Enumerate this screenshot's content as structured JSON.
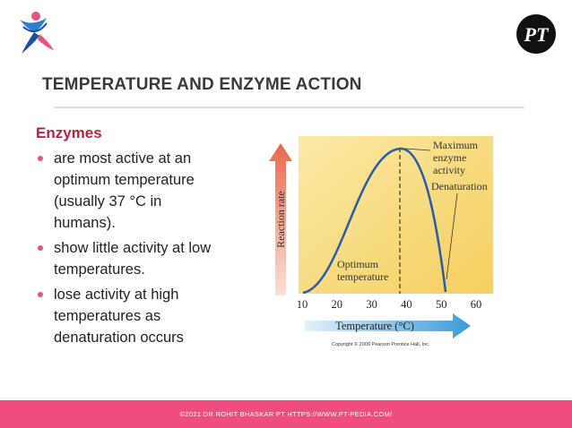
{
  "header": {
    "title": "TEMPERATURE AND ENZYME ACTION",
    "logo_text": "PT"
  },
  "content": {
    "heading": "Enzymes",
    "bullets": [
      "are most active at an optimum temperature (usually 37 °C in humans).",
      "show little activity at low temperatures.",
      "lose activity at high temperatures as denaturation occurs"
    ]
  },
  "figure": {
    "y_label": "Reaction rate",
    "x_label": "Temperature (°C)",
    "xticks": [
      10,
      20,
      30,
      40,
      50,
      60
    ],
    "annotations": {
      "maximum": [
        "Maximum",
        "enzyme",
        "activity"
      ],
      "denaturation": "Denaturation",
      "optimum": [
        "Optimum",
        "temperature"
      ]
    },
    "copyright": "Copyright © 2009 Pearson Prentice Hall, Inc."
  },
  "footer": {
    "text": "©2021 DR ROHIT BHASKAR PT HTTPS://WWW.PT-PEDIA.COM/"
  }
}
